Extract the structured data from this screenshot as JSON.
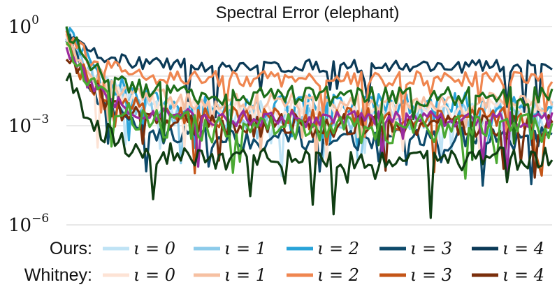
{
  "chart_data": {
    "type": "line",
    "title": "Spectral Error (elephant)",
    "scale": "log",
    "ylim_exponent": [
      -6,
      0
    ],
    "y_ticks": [
      {
        "base": "10",
        "exp": "0",
        "value": 1
      },
      {
        "base": "10",
        "exp": "−3",
        "value": 0.001
      },
      {
        "base": "10",
        "exp": "−6",
        "value": 1e-06
      }
    ],
    "xlim": [
      0,
      100
    ],
    "grid": true,
    "legend": {
      "placement": "bottom",
      "rows": [
        {
          "label": "Ours:",
          "entries": [
            "ι = 0",
            "ι = 1",
            "ι = 2",
            "ι = 3",
            "ι = 4"
          ]
        },
        {
          "label": "Whitney:",
          "entries": [
            "ι = 0",
            "ι = 1",
            "ι = 2",
            "ι = 3",
            "ι = 4"
          ]
        }
      ]
    },
    "series": [
      {
        "group": "Ours",
        "name": "ι = 0",
        "color": "#bfe3f5",
        "log10_start": -0.2,
        "log10_level": -2.6,
        "noise": 0.35
      },
      {
        "group": "Ours",
        "name": "ι = 1",
        "color": "#8ccbea",
        "log10_start": -0.15,
        "log10_level": -2.7,
        "noise": 0.45
      },
      {
        "group": "Ours",
        "name": "ι = 2",
        "color": "#29a3d8",
        "log10_start": -0.1,
        "log10_level": -2.4,
        "noise": 0.4
      },
      {
        "group": "Ours",
        "name": "ι = 3",
        "color": "#0e4a6b",
        "log10_start": -0.2,
        "log10_level": -3.4,
        "noise": 0.35
      },
      {
        "group": "Ours",
        "name": "ι = 4",
        "color": "#0b3a57",
        "log10_start": -0.3,
        "log10_level": -1.2,
        "noise": 0.2
      },
      {
        "group": "Whitney",
        "name": "ι = 0",
        "color": "#fde3d5",
        "log10_start": -0.5,
        "log10_level": -2.5,
        "noise": 0.3
      },
      {
        "group": "Whitney",
        "name": "ι = 1",
        "color": "#f6c0a2",
        "log10_start": -0.4,
        "log10_level": -2.3,
        "noise": 0.3
      },
      {
        "group": "Whitney",
        "name": "ι = 2",
        "color": "#ef8650",
        "log10_start": -0.3,
        "log10_level": -1.6,
        "noise": 0.25
      },
      {
        "group": "Whitney",
        "name": "ι = 3",
        "color": "#c45517",
        "log10_start": -0.6,
        "log10_level": -2.8,
        "noise": 0.35
      },
      {
        "group": "Whitney",
        "name": "ι = 4",
        "color": "#7a2e0b",
        "log10_start": -0.7,
        "log10_level": -3.0,
        "noise": 0.35
      },
      {
        "group": "extra",
        "name": "",
        "color": "#9b2b9e",
        "log10_start": -0.6,
        "log10_level": -2.8,
        "noise": 0.25
      },
      {
        "group": "extra",
        "name": "",
        "color": "#1e6e1a",
        "log10_start": -0.1,
        "log10_level": -2.1,
        "noise": 0.3
      },
      {
        "group": "extra",
        "name": "",
        "color": "#4aa832",
        "log10_start": -0.3,
        "log10_level": -3.1,
        "noise": 0.45
      },
      {
        "group": "extra",
        "name": "",
        "color": "#0f3d12",
        "log10_start": -1.5,
        "log10_level": -4.0,
        "noise": 0.35
      }
    ]
  }
}
